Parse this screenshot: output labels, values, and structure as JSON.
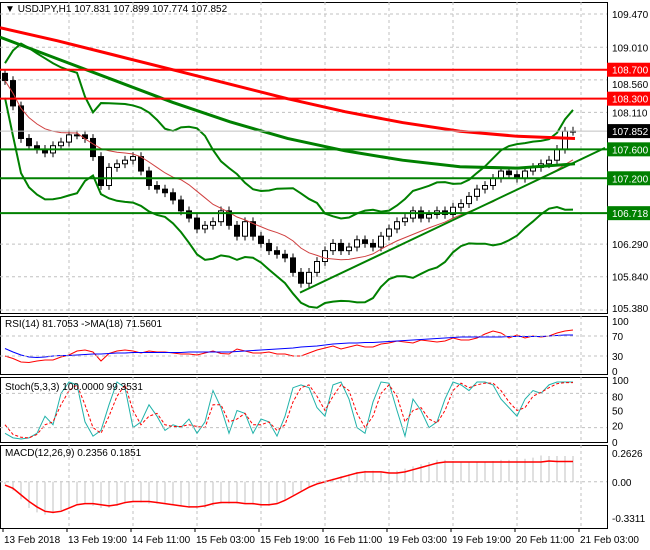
{
  "header": {
    "symbol": "USDJPY,H1",
    "open": "107.831",
    "high": "107.899",
    "low": "107.774",
    "close": "107.852"
  },
  "colors": {
    "bull": "#000000",
    "bear": "#000000",
    "ma_slow": "#ff0000",
    "ma_mid": "#008000",
    "bands": "#008000",
    "resistance": "#ff0000",
    "support": "#008000",
    "rsi": "#ff0000",
    "rsi_ma": "#0000ff",
    "stoch_main": "#20b2aa",
    "stoch_signal": "#ff0000",
    "macd_hist": "#c0c0c0",
    "macd_signal": "#ff0000"
  },
  "chart_data": [
    {
      "type": "candlestick",
      "title": "USDJPY,H1",
      "ylim": [
        105.38,
        109.47
      ],
      "yticks": [
        "109.470",
        "109.010",
        "108.560",
        "108.110",
        "107.600",
        "106.290",
        "105.840",
        "105.380"
      ],
      "xticks": [
        "13 Feb 2018",
        "13 Feb 19:00",
        "14 Feb 11:00",
        "15 Feb 03:00",
        "15 Feb 19:00",
        "16 Feb 11:00",
        "19 Feb 03:00",
        "19 Feb 19:00",
        "20 Feb 11:00",
        "21 Feb 03:00"
      ],
      "closes": [
        108.55,
        108.2,
        107.75,
        107.65,
        107.6,
        107.55,
        107.65,
        107.7,
        107.8,
        107.8,
        107.75,
        107.5,
        107.1,
        107.35,
        107.4,
        107.45,
        107.5,
        107.3,
        107.1,
        107.05,
        107.0,
        106.9,
        106.75,
        106.65,
        106.5,
        106.55,
        106.6,
        106.75,
        106.55,
        106.4,
        106.6,
        106.4,
        106.3,
        106.2,
        106.15,
        106.1,
        105.9,
        105.75,
        105.9,
        106.05,
        106.2,
        106.3,
        106.2,
        106.25,
        106.35,
        106.3,
        106.25,
        106.4,
        106.5,
        106.6,
        106.65,
        106.75,
        106.65,
        106.7,
        106.75,
        106.7,
        106.8,
        106.85,
        106.95,
        107.05,
        107.1,
        107.2,
        107.3,
        107.25,
        107.2,
        107.3,
        107.35,
        107.4,
        107.45,
        107.6,
        107.85,
        107.852
      ],
      "ma_slow": [
        109.28,
        109.1,
        108.9,
        108.7,
        108.5,
        108.3,
        108.12,
        107.97,
        107.85,
        107.78,
        107.75
      ],
      "ma_mid": [
        109.15,
        108.85,
        108.55,
        108.25,
        107.98,
        107.75,
        107.58,
        107.45,
        107.36,
        107.34,
        107.4
      ],
      "levels": [
        {
          "value": 108.7,
          "label": "108.700",
          "kind": "resistance"
        },
        {
          "value": 108.3,
          "label": "108.300",
          "kind": "resistance"
        },
        {
          "value": 107.6,
          "label": "107.600",
          "kind": "support"
        },
        {
          "value": 107.2,
          "label": "107.200",
          "kind": "support"
        },
        {
          "value": 106.718,
          "label": "106.718",
          "kind": "support"
        }
      ],
      "current_price": "107.852",
      "trendline": [
        [
          37,
          105.62
        ],
        [
          75,
          107.62
        ]
      ]
    },
    {
      "type": "line",
      "title": "RSI(14) 81.7053  ->MA(18) 71.5601",
      "ylim": [
        0,
        100
      ],
      "yticks": [
        "100",
        "70",
        "30",
        "0"
      ],
      "rsi": [
        30,
        25,
        18,
        17,
        20,
        22,
        22,
        28,
        32,
        40,
        42,
        38,
        20,
        35,
        40,
        42,
        40,
        36,
        40,
        38,
        38,
        36,
        34,
        34,
        32,
        36,
        40,
        35,
        34,
        44,
        40,
        36,
        36,
        38,
        34,
        34,
        30,
        30,
        36,
        42,
        46,
        50,
        44,
        48,
        52,
        48,
        48,
        54,
        56,
        60,
        58,
        56,
        62,
        60,
        58,
        60,
        66,
        62,
        62,
        66,
        74,
        80,
        76,
        66,
        72,
        66,
        70,
        68,
        70,
        76,
        80,
        82
      ],
      "rsi_ma": [
        45,
        38,
        32,
        28,
        27,
        28,
        30,
        31,
        31,
        32,
        33,
        34,
        34,
        35,
        36,
        36,
        37,
        37,
        37,
        37,
        37,
        37,
        37,
        38,
        38,
        38,
        38,
        38,
        38,
        39,
        40,
        41,
        42,
        43,
        44,
        45,
        46,
        48,
        49,
        50,
        52,
        54,
        55,
        56,
        56,
        57,
        57,
        58,
        59,
        60,
        61,
        62,
        63,
        64,
        65,
        66,
        67,
        68,
        68,
        68,
        68,
        68,
        68,
        69,
        69,
        69,
        69,
        69,
        70,
        71,
        72,
        72
      ]
    },
    {
      "type": "line",
      "title": "Stoch(5,3,3) 100.0000 99.3531",
      "ylim": [
        0,
        100
      ],
      "yticks": [
        "100",
        "80",
        "50",
        "20",
        "0"
      ],
      "main": [
        10,
        2,
        0,
        2,
        10,
        40,
        25,
        80,
        100,
        95,
        30,
        5,
        15,
        60,
        100,
        90,
        20,
        30,
        60,
        40,
        15,
        25,
        20,
        35,
        10,
        30,
        85,
        55,
        10,
        50,
        45,
        10,
        35,
        30,
        5,
        40,
        90,
        95,
        90,
        55,
        40,
        95,
        100,
        70,
        20,
        10,
        65,
        100,
        98,
        50,
        5,
        70,
        50,
        20,
        30,
        70,
        100,
        95,
        85,
        100,
        100,
        95,
        70,
        55,
        40,
        70,
        85,
        80,
        95,
        100,
        100,
        100
      ],
      "signal": [
        25,
        8,
        3,
        2,
        8,
        25,
        30,
        60,
        85,
        95,
        60,
        20,
        10,
        40,
        75,
        95,
        50,
        25,
        40,
        45,
        25,
        22,
        22,
        25,
        22,
        20,
        60,
        60,
        30,
        35,
        45,
        25,
        25,
        30,
        15,
        25,
        65,
        90,
        95,
        75,
        50,
        75,
        95,
        85,
        45,
        20,
        40,
        80,
        95,
        75,
        30,
        50,
        55,
        35,
        28,
        50,
        85,
        98,
        90,
        95,
        98,
        98,
        85,
        65,
        50,
        55,
        75,
        82,
        90,
        97,
        99,
        99
      ]
    },
    {
      "type": "bar+line",
      "title": "MACD(12,26,9) 0.2356 0.1851",
      "ylim": [
        -0.3311,
        0.2626
      ],
      "yticks": [
        "0.2626",
        "0.00",
        "-0.3311"
      ],
      "hist": [
        -0.02,
        -0.08,
        -0.16,
        -0.24,
        -0.28,
        -0.3,
        -0.29,
        -0.26,
        -0.22,
        -0.2,
        -0.2,
        -0.22,
        -0.24,
        -0.24,
        -0.22,
        -0.2,
        -0.19,
        -0.19,
        -0.2,
        -0.2,
        -0.2,
        -0.21,
        -0.22,
        -0.24,
        -0.25,
        -0.24,
        -0.22,
        -0.2,
        -0.2,
        -0.2,
        -0.2,
        -0.21,
        -0.22,
        -0.22,
        -0.2,
        -0.17,
        -0.12,
        -0.08,
        -0.04,
        -0.01,
        0.01,
        0.03,
        0.05,
        0.07,
        0.09,
        0.1,
        0.1,
        0.09,
        0.09,
        0.1,
        0.12,
        0.14,
        0.16,
        0.18,
        0.2,
        0.2,
        0.19,
        0.18,
        0.18,
        0.18,
        0.18,
        0.19,
        0.2,
        0.2,
        0.2,
        0.21,
        0.22,
        0.24,
        0.2356,
        0.2356,
        0.2356,
        0.2356
      ],
      "signal": [
        -0.03,
        -0.06,
        -0.12,
        -0.18,
        -0.23,
        -0.27,
        -0.28,
        -0.27,
        -0.24,
        -0.21,
        -0.2,
        -0.2,
        -0.21,
        -0.22,
        -0.21,
        -0.19,
        -0.18,
        -0.18,
        -0.18,
        -0.19,
        -0.2,
        -0.21,
        -0.22,
        -0.23,
        -0.23,
        -0.22,
        -0.2,
        -0.19,
        -0.19,
        -0.19,
        -0.2,
        -0.2,
        -0.21,
        -0.21,
        -0.2,
        -0.17,
        -0.13,
        -0.09,
        -0.05,
        -0.02,
        0,
        0.02,
        0.04,
        0.06,
        0.08,
        0.09,
        0.09,
        0.09,
        0.08,
        0.08,
        0.09,
        0.11,
        0.13,
        0.15,
        0.17,
        0.18,
        0.18,
        0.18,
        0.18,
        0.18,
        0.18,
        0.18,
        0.18,
        0.18,
        0.18,
        0.18,
        0.18,
        0.18,
        0.19,
        0.1851,
        0.1851,
        0.1851
      ]
    }
  ]
}
